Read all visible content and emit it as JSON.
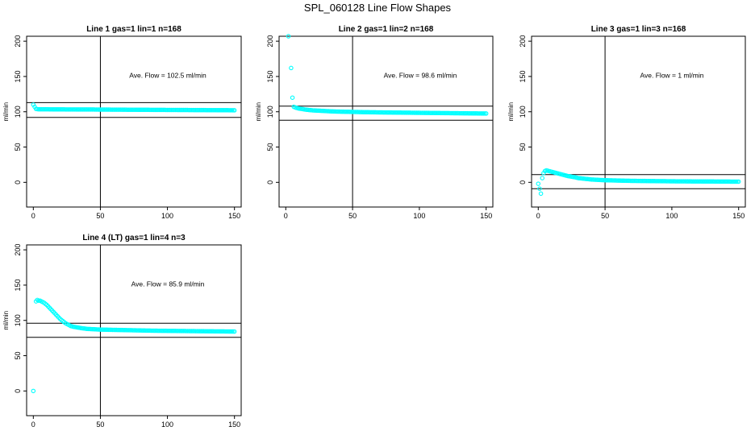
{
  "figure_title": "SPL_060128  Line Flow Shapes",
  "chart_data": [
    {
      "type": "scatter",
      "title": "Line 1 gas=1 lin=1 n=168",
      "ylabel": "ml/min",
      "xlim": [
        -5,
        155
      ],
      "ylim": [
        -35,
        207
      ],
      "xticks": [
        0,
        50,
        100,
        150
      ],
      "yticks": [
        0,
        50,
        100,
        150,
        200
      ],
      "annotation": "Ave. Flow =  102.5  ml/min",
      "hlines": [
        113,
        92
      ],
      "vline": 50,
      "x": [
        0,
        2,
        4,
        6,
        8,
        10,
        15,
        20,
        25,
        30,
        35,
        40,
        45,
        50,
        55,
        60,
        65,
        70,
        75,
        80,
        85,
        90,
        95,
        100,
        105,
        110,
        115,
        120,
        125,
        130,
        135,
        140,
        145,
        150
      ],
      "y": [
        110,
        104,
        103.5,
        103.5,
        103.5,
        103.5,
        103.4,
        103.4,
        103.3,
        103.3,
        103.2,
        103.2,
        103.2,
        103.1,
        103.1,
        103,
        103,
        102.9,
        102.9,
        102.8,
        102.8,
        102.7,
        102.7,
        102.6,
        102.6,
        102.5,
        102.5,
        102.4,
        102.4,
        102.3,
        102.3,
        102.2,
        102.2,
        102.1
      ]
    },
    {
      "type": "scatter",
      "title": "Line 2 gas=1 lin=2 n=168",
      "ylabel": "ml/min",
      "xlim": [
        -5,
        155
      ],
      "ylim": [
        -35,
        207
      ],
      "xticks": [
        0,
        50,
        100,
        150
      ],
      "yticks": [
        0,
        50,
        100,
        150,
        200
      ],
      "annotation": "Ave. Flow =  98.6  ml/min",
      "hlines": [
        108,
        88
      ],
      "vline": 50,
      "x": [
        2,
        4,
        5,
        6,
        8,
        10,
        12,
        15,
        20,
        25,
        30,
        35,
        40,
        45,
        50,
        55,
        60,
        65,
        70,
        75,
        80,
        85,
        90,
        95,
        100,
        105,
        110,
        115,
        120,
        125,
        130,
        135,
        140,
        145,
        150
      ],
      "y": [
        207,
        162,
        120,
        107,
        105.5,
        104.5,
        104,
        103,
        102,
        101.5,
        101,
        100.5,
        100.2,
        100,
        99.8,
        99.6,
        99.4,
        99.3,
        99.1,
        99,
        98.9,
        98.8,
        98.7,
        98.6,
        98.5,
        98.4,
        98.3,
        98.2,
        98.1,
        98,
        97.9,
        97.8,
        97.7,
        97.6,
        97.5
      ]
    },
    {
      "type": "scatter",
      "title": "Line 3 gas=1 lin=3 n=168",
      "ylabel": "ml/min",
      "xlim": [
        -5,
        155
      ],
      "ylim": [
        -35,
        207
      ],
      "xticks": [
        0,
        50,
        100,
        150
      ],
      "yticks": [
        0,
        50,
        100,
        150,
        200
      ],
      "annotation": "Ave. Flow =  1  ml/min",
      "hlines": [
        11,
        -9
      ],
      "vline": 50,
      "x": [
        0,
        2,
        3,
        4,
        5,
        6,
        7,
        8,
        10,
        12,
        14,
        16,
        18,
        20,
        22,
        25,
        28,
        30,
        35,
        40,
        45,
        50,
        55,
        60,
        65,
        70,
        75,
        80,
        85,
        90,
        95,
        100,
        105,
        110,
        115,
        120,
        125,
        130,
        135,
        140,
        145,
        150
      ],
      "y": [
        -2,
        -16,
        6,
        13,
        16,
        17,
        16.5,
        16,
        15,
        14,
        13,
        12,
        11,
        10,
        9,
        8,
        7,
        6,
        5,
        4,
        3.5,
        3,
        2.8,
        2.5,
        2.3,
        2.1,
        2,
        1.9,
        1.8,
        1.7,
        1.6,
        1.5,
        1.4,
        1.4,
        1.3,
        1.3,
        1.2,
        1.2,
        1.1,
        1.1,
        1,
        1
      ]
    },
    {
      "type": "scatter",
      "title": "Line 4 (LT) gas=1 lin=4 n=3",
      "ylabel": "ml/min",
      "xlim": [
        -5,
        155
      ],
      "ylim": [
        -35,
        207
      ],
      "xticks": [
        0,
        50,
        100,
        150
      ],
      "yticks": [
        0,
        50,
        100,
        150,
        200
      ],
      "annotation": "Ave. Flow =  85.9  ml/min",
      "hlines": [
        96,
        76
      ],
      "vline": 50,
      "x": [
        0,
        2,
        3,
        4,
        5,
        6,
        8,
        10,
        12,
        14,
        16,
        18,
        20,
        22,
        24,
        26,
        28,
        30,
        33,
        36,
        40,
        45,
        50,
        55,
        60,
        65,
        70,
        75,
        80,
        85,
        90,
        95,
        100,
        105,
        110,
        115,
        120,
        125,
        130,
        135,
        140,
        145,
        150
      ],
      "y": [
        0,
        127,
        129,
        128,
        128,
        127,
        125,
        122,
        118,
        114,
        110,
        106,
        102,
        99,
        96,
        94,
        92,
        91,
        90,
        89,
        88,
        87.5,
        87,
        86.8,
        86.6,
        86.4,
        86.2,
        86,
        85.8,
        85.6,
        85.4,
        85.3,
        85.2,
        85.1,
        85,
        84.9,
        84.8,
        84.7,
        84.6,
        84.5,
        84.4,
        84.3,
        84.2
      ]
    }
  ]
}
